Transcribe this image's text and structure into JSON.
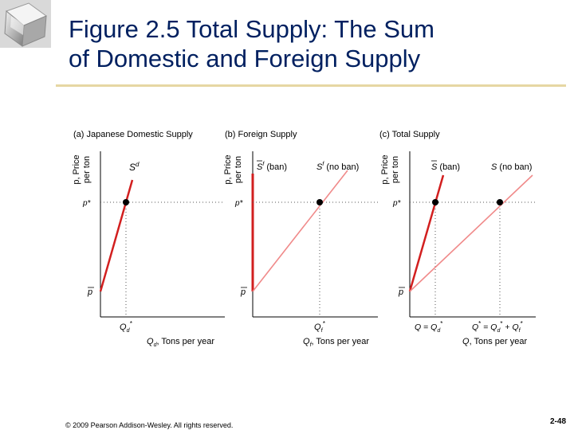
{
  "slide": {
    "title_line1": "Figure 2.5  Total Supply: The Sum",
    "title_line2": "of Domestic and Foreign Supply",
    "copyright": "© 2009 Pearson Addison-Wesley. All rights reserved.",
    "page_number": "2-48"
  },
  "colors": {
    "title": "#002060",
    "rule": "#e6d7a3",
    "steep_curve": "#d21f1f",
    "flat_curve": "#f08a8a",
    "axis": "#000000",
    "guide": "#555555"
  },
  "panels": [
    {
      "heading": "(a) Japanese Domestic Supply",
      "y_label_1": "p, Price",
      "y_label_2": "per ton",
      "x_label": "Qd, Tons per year",
      "curve_label": "Sd",
      "tick_pstar": "p*",
      "tick_pbar": "p",
      "x_tick": "Qd*"
    },
    {
      "heading": "(b) Foreign Supply",
      "y_label_1": "p, Price",
      "y_label_2": "per ton",
      "x_label": "Qf, Tons per year",
      "curve_label_ban": "S f (ban)",
      "curve_label_noban": "S f (no ban)",
      "tick_pstar": "p*",
      "tick_pbar": "p",
      "x_tick": "Qf*"
    },
    {
      "heading": "(c) Total Supply",
      "y_label_1": "p, Price",
      "y_label_2": "per ton",
      "x_label": "Q, Tons per year",
      "curve_label_ban": "S (ban)",
      "curve_label_noban": "S (no ban)",
      "tick_pstar": "p*",
      "tick_pbar": "p",
      "x_tick_1": "Q = Qd*",
      "x_tick_2": "Q* = Qd* + Qf*"
    }
  ]
}
